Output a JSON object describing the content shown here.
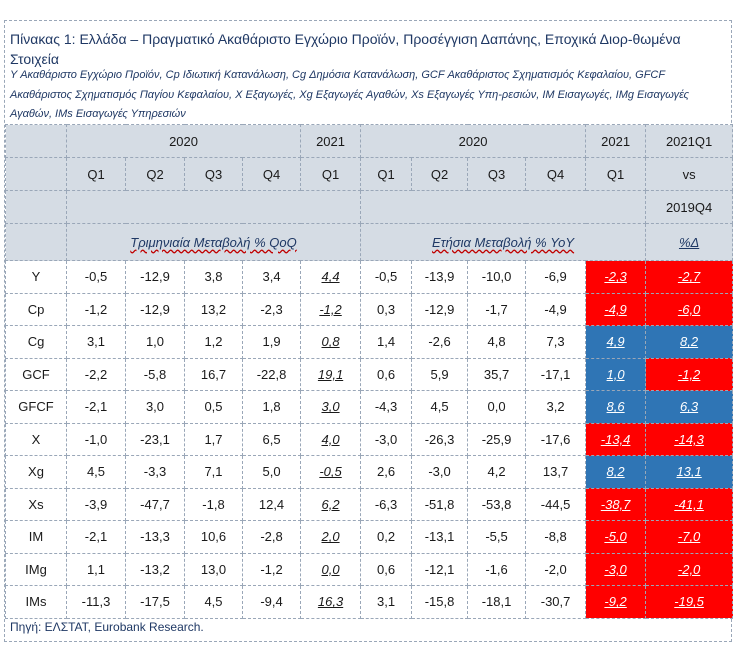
{
  "title": "Πίνακας 1: Ελλάδα – Πραγματικό Ακαθάριστο Εγχώριο Προϊόν, Προσέγγιση Δαπάνης, Εποχικά Διορ-θωμένα Στοιχεία",
  "subtitle": "Y Ακαθάριστο Εγχώριο Προϊόν, Cp Ιδιωτική Κατανάλωση, Cg Δημόσια Κατανάλωση, GCF Ακαθάριστος Σχηματισμός Κεφαλαίου, GFCF Ακαθάριστος Σχηματισμός Παγίου Κεφαλαίου, X Εξαγωγές, Xg Εξαγωγές Αγαθών, Xs Εξαγωγές Υπη-ρεσιών, IM Εισαγωγές, IMg Εισαγωγές Αγαθών, IMs Εισαγωγές Υπηρεσιών",
  "header": {
    "year_2020_a": "2020",
    "year_2021_a": "2021",
    "year_2020_b": "2020",
    "year_2021_b": "2021",
    "compare_top": "2021Q1",
    "compare_mid": "vs",
    "compare_bottom": "2019Q4",
    "q1": "Q1",
    "q2": "Q2",
    "q3": "Q3",
    "q4": "Q4",
    "qoq_label": "Τριμηνιαία Μεταβολή % QoQ",
    "yoy_label": "Ετήσια Μεταβολή % YoY",
    "delta_label": "%Δ"
  },
  "rows": [
    {
      "label": "Y",
      "qoq": [
        "-0,5",
        "-12,9",
        "3,8",
        "3,4"
      ],
      "qoq21": "4,4",
      "yoy": [
        "-0,5",
        "-13,9",
        "-10,0",
        "-6,9"
      ],
      "yoy21": "-2,3",
      "yoy21_color": "red",
      "delta": "-2,7",
      "delta_color": "red"
    },
    {
      "label": "Cp",
      "qoq": [
        "-1,2",
        "-12,9",
        "13,2",
        "-2,3"
      ],
      "qoq21": "-1,2",
      "yoy": [
        "0,3",
        "-12,9",
        "-1,7",
        "-4,9"
      ],
      "yoy21": "-4,9",
      "yoy21_color": "red",
      "delta": "-6,0",
      "delta_color": "red"
    },
    {
      "label": "Cg",
      "qoq": [
        "3,1",
        "1,0",
        "1,2",
        "1,9"
      ],
      "qoq21": "0,8",
      "yoy": [
        "1,4",
        "-2,6",
        "4,8",
        "7,3"
      ],
      "yoy21": "4,9",
      "yoy21_color": "blue",
      "delta": "8,2",
      "delta_color": "blue"
    },
    {
      "label": "GCF",
      "qoq": [
        "-2,2",
        "-5,8",
        "16,7",
        "-22,8"
      ],
      "qoq21": "19,1",
      "yoy": [
        "0,6",
        "5,9",
        "35,7",
        "-17,1"
      ],
      "yoy21": "1,0",
      "yoy21_color": "blue",
      "delta": "-1,2",
      "delta_color": "red"
    },
    {
      "label": "GFCF",
      "qoq": [
        "-2,1",
        "3,0",
        "0,5",
        "1,8"
      ],
      "qoq21": "3,0",
      "yoy": [
        "-4,3",
        "4,5",
        "0,0",
        "3,2"
      ],
      "yoy21": "8,6",
      "yoy21_color": "blue",
      "delta": "6,3",
      "delta_color": "blue"
    },
    {
      "label": "X",
      "qoq": [
        "-1,0",
        "-23,1",
        "1,7",
        "6,5"
      ],
      "qoq21": "4,0",
      "yoy": [
        "-3,0",
        "-26,3",
        "-25,9",
        "-17,6"
      ],
      "yoy21": "-13,4",
      "yoy21_color": "red",
      "delta": "-14,3",
      "delta_color": "red"
    },
    {
      "label": "Xg",
      "qoq": [
        "4,5",
        "-3,3",
        "7,1",
        "5,0"
      ],
      "qoq21": "-0,5",
      "yoy": [
        "2,6",
        "-3,0",
        "4,2",
        "13,7"
      ],
      "yoy21": "8,2",
      "yoy21_color": "blue",
      "delta": "13,1",
      "delta_color": "blue"
    },
    {
      "label": "Xs",
      "qoq": [
        "-3,9",
        "-47,7",
        "-1,8",
        "12,4"
      ],
      "qoq21": "6,2",
      "yoy": [
        "-6,3",
        "-51,8",
        "-53,8",
        "-44,5"
      ],
      "yoy21": "-38,7",
      "yoy21_color": "red",
      "delta": "-41,1",
      "delta_color": "red"
    },
    {
      "label": "IM",
      "qoq": [
        "-2,1",
        "-13,3",
        "10,6",
        "-2,8"
      ],
      "qoq21": "2,0",
      "yoy": [
        "0,2",
        "-13,1",
        "-5,5",
        "-8,8"
      ],
      "yoy21": "-5,0",
      "yoy21_color": "red",
      "delta": "-7,0",
      "delta_color": "red"
    },
    {
      "label": "IMg",
      "qoq": [
        "1,1",
        "-13,2",
        "13,0",
        "-1,2"
      ],
      "qoq21": "0,0",
      "yoy": [
        "0,6",
        "-12,1",
        "-1,6",
        "-2,0"
      ],
      "yoy21": "-3,0",
      "yoy21_color": "red",
      "delta": "-2,0",
      "delta_color": "red"
    },
    {
      "label": "IMs",
      "qoq": [
        "-11,3",
        "-17,5",
        "4,5",
        "-9,4"
      ],
      "qoq21": "16,3",
      "yoy": [
        "3,1",
        "-15,8",
        "-18,1",
        "-30,7"
      ],
      "yoy21": "-9,2",
      "yoy21_color": "red",
      "delta": "-19,5",
      "delta_color": "red"
    }
  ],
  "source": "Πηγή: ΕΛΣΤΑΤ, Eurobank Research."
}
